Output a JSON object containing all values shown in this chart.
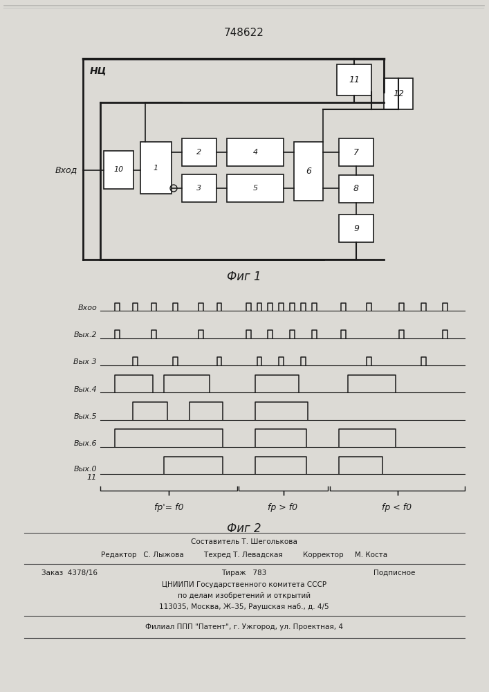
{
  "patent_number": "748622",
  "fig1_label": "Фиг 1",
  "fig2_label": "Фиг 2",
  "nc_label": "НЦ",
  "vhod_label": "Вход",
  "paper_color": "#dcdad5",
  "line_color": "#1a1a1a",
  "timing_labels": [
    "Вхоо",
    "Вых.2",
    "Вых 3",
    "Вых.4",
    "Вых.5",
    "Вых.6",
    "Вых.0\n11"
  ],
  "region_labels": [
    "fp'= f0",
    "fp > f0",
    "fp < f0"
  ]
}
